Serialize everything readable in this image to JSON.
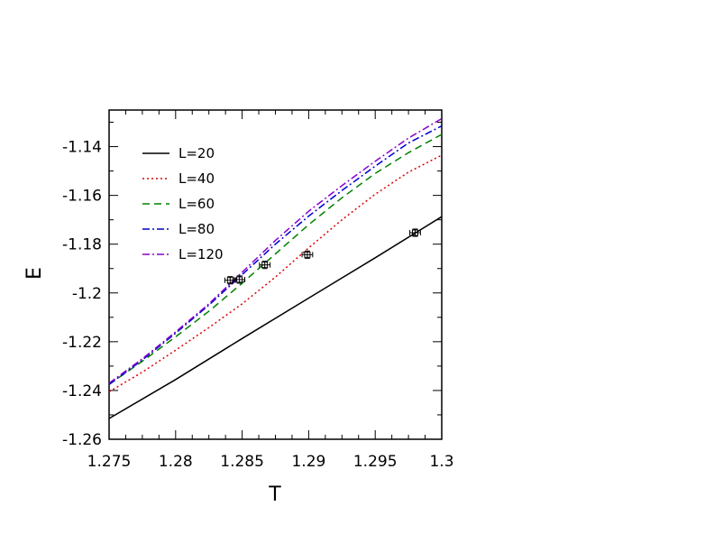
{
  "chart_data": {
    "type": "line",
    "xlabel": "T",
    "ylabel": "E",
    "xlim": [
      1.275,
      1.3
    ],
    "ylim": [
      -1.26,
      -1.125
    ],
    "xticks": [
      "1.275",
      "1.28",
      "1.285",
      "1.29",
      "1.295",
      "1.3"
    ],
    "yticks": [
      "-1.14",
      "-1.16",
      "-1.18",
      "-1.2",
      "-1.22",
      "-1.24",
      "-1.26"
    ],
    "legend_position": "top-left",
    "grid": false,
    "series": [
      {
        "name": "L=20",
        "color": "#000000",
        "dash": "solid",
        "x": [
          1.275,
          1.28,
          1.285,
          1.29,
          1.295,
          1.3
        ],
        "y": [
          -1.2515,
          -1.2355,
          -1.2187,
          -1.2021,
          -1.1856,
          -1.1687
        ]
      },
      {
        "name": "L=40",
        "color": "#dd0000",
        "dash": "dotted",
        "x": [
          1.275,
          1.2775,
          1.28,
          1.2825,
          1.285,
          1.2875,
          1.29,
          1.2925,
          1.295,
          1.2975,
          1.3
        ],
        "y": [
          -1.2405,
          -1.2325,
          -1.2235,
          -1.2142,
          -1.2045,
          -1.1935,
          -1.1815,
          -1.17,
          -1.1595,
          -1.1505,
          -1.1435
        ]
      },
      {
        "name": "L=60",
        "color": "#008000",
        "dash": "dashed",
        "x": [
          1.275,
          1.2775,
          1.28,
          1.2825,
          1.285,
          1.2875,
          1.29,
          1.2925,
          1.295,
          1.2975,
          1.3
        ],
        "y": [
          -1.2375,
          -1.228,
          -1.218,
          -1.2075,
          -1.196,
          -1.184,
          -1.172,
          -1.161,
          -1.151,
          -1.1425,
          -1.135
        ]
      },
      {
        "name": "L=80",
        "color": "#0000cc",
        "dash": "dashdot",
        "x": [
          1.275,
          1.2775,
          1.28,
          1.2825,
          1.285,
          1.2875,
          1.29,
          1.2925,
          1.295,
          1.2975,
          1.3
        ],
        "y": [
          -1.2375,
          -1.2275,
          -1.2165,
          -1.205,
          -1.1925,
          -1.18,
          -1.1685,
          -1.158,
          -1.148,
          -1.1385,
          -1.1315
        ]
      },
      {
        "name": "L=120",
        "color": "#8800cc",
        "dash": "dashdot",
        "x": [
          1.275,
          1.2775,
          1.28,
          1.2825,
          1.285,
          1.2875,
          1.29,
          1.2925,
          1.295,
          1.2975,
          1.3
        ],
        "y": [
          -1.237,
          -1.227,
          -1.216,
          -1.2045,
          -1.1915,
          -1.1785,
          -1.1665,
          -1.156,
          -1.146,
          -1.1365,
          -1.1285
        ]
      }
    ],
    "markers": [
      {
        "x": 1.2841,
        "y": -1.1948,
        "xerr": 0.0004,
        "yerr": 0.0015
      },
      {
        "x": 1.2848,
        "y": -1.1945,
        "xerr": 0.0004,
        "yerr": 0.0015
      },
      {
        "x": 1.2867,
        "y": -1.1885,
        "xerr": 0.0004,
        "yerr": 0.0015
      },
      {
        "x": 1.2899,
        "y": -1.1843,
        "xerr": 0.0004,
        "yerr": 0.0015
      },
      {
        "x": 1.298,
        "y": -1.1753,
        "xerr": 0.0004,
        "yerr": 0.0015
      }
    ]
  }
}
